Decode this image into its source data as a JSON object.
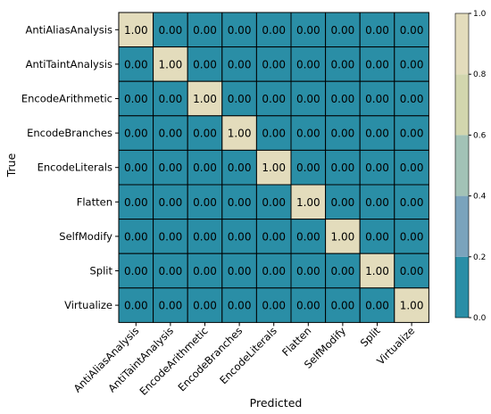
{
  "chart_data": {
    "type": "heatmap",
    "title": "",
    "xlabel": "Predicted",
    "ylabel": "True",
    "categories": [
      "AntiAliasAnalysis",
      "AntiTaintAnalysis",
      "EncodeArithmetic",
      "EncodeBranches",
      "EncodeLiterals",
      "Flatten",
      "SelfModify",
      "Split",
      "Virtualize"
    ],
    "values": [
      [
        1,
        0,
        0,
        0,
        0,
        0,
        0,
        0,
        0
      ],
      [
        0,
        1,
        0,
        0,
        0,
        0,
        0,
        0,
        0
      ],
      [
        0,
        0,
        1,
        0,
        0,
        0,
        0,
        0,
        0
      ],
      [
        0,
        0,
        0,
        1,
        0,
        0,
        0,
        0,
        0
      ],
      [
        0,
        0,
        0,
        0,
        1,
        0,
        0,
        0,
        0
      ],
      [
        0,
        0,
        0,
        0,
        0,
        1,
        0,
        0,
        0
      ],
      [
        0,
        0,
        0,
        0,
        0,
        0,
        1,
        0,
        0
      ],
      [
        0,
        0,
        0,
        0,
        0,
        0,
        0,
        1,
        0
      ],
      [
        0,
        0,
        0,
        0,
        0,
        0,
        0,
        0,
        1
      ]
    ],
    "value_format": "0.00",
    "colorbar": {
      "ticks": [
        "0.0",
        "0.2",
        "0.4",
        "0.6",
        "0.8",
        "1.0"
      ],
      "bins": [
        {
          "from": 0.0,
          "to": 0.2,
          "color": "#2a8ea6"
        },
        {
          "from": 0.2,
          "to": 0.4,
          "color": "#7aa3bc"
        },
        {
          "from": 0.4,
          "to": 0.6,
          "color": "#a2c2b6"
        },
        {
          "from": 0.6,
          "to": 0.8,
          "color": "#d2d6ae"
        },
        {
          "from": 0.8,
          "to": 1.0,
          "color": "#e3dcbc"
        }
      ]
    },
    "grid": true,
    "legend": "right (colorbar)"
  }
}
